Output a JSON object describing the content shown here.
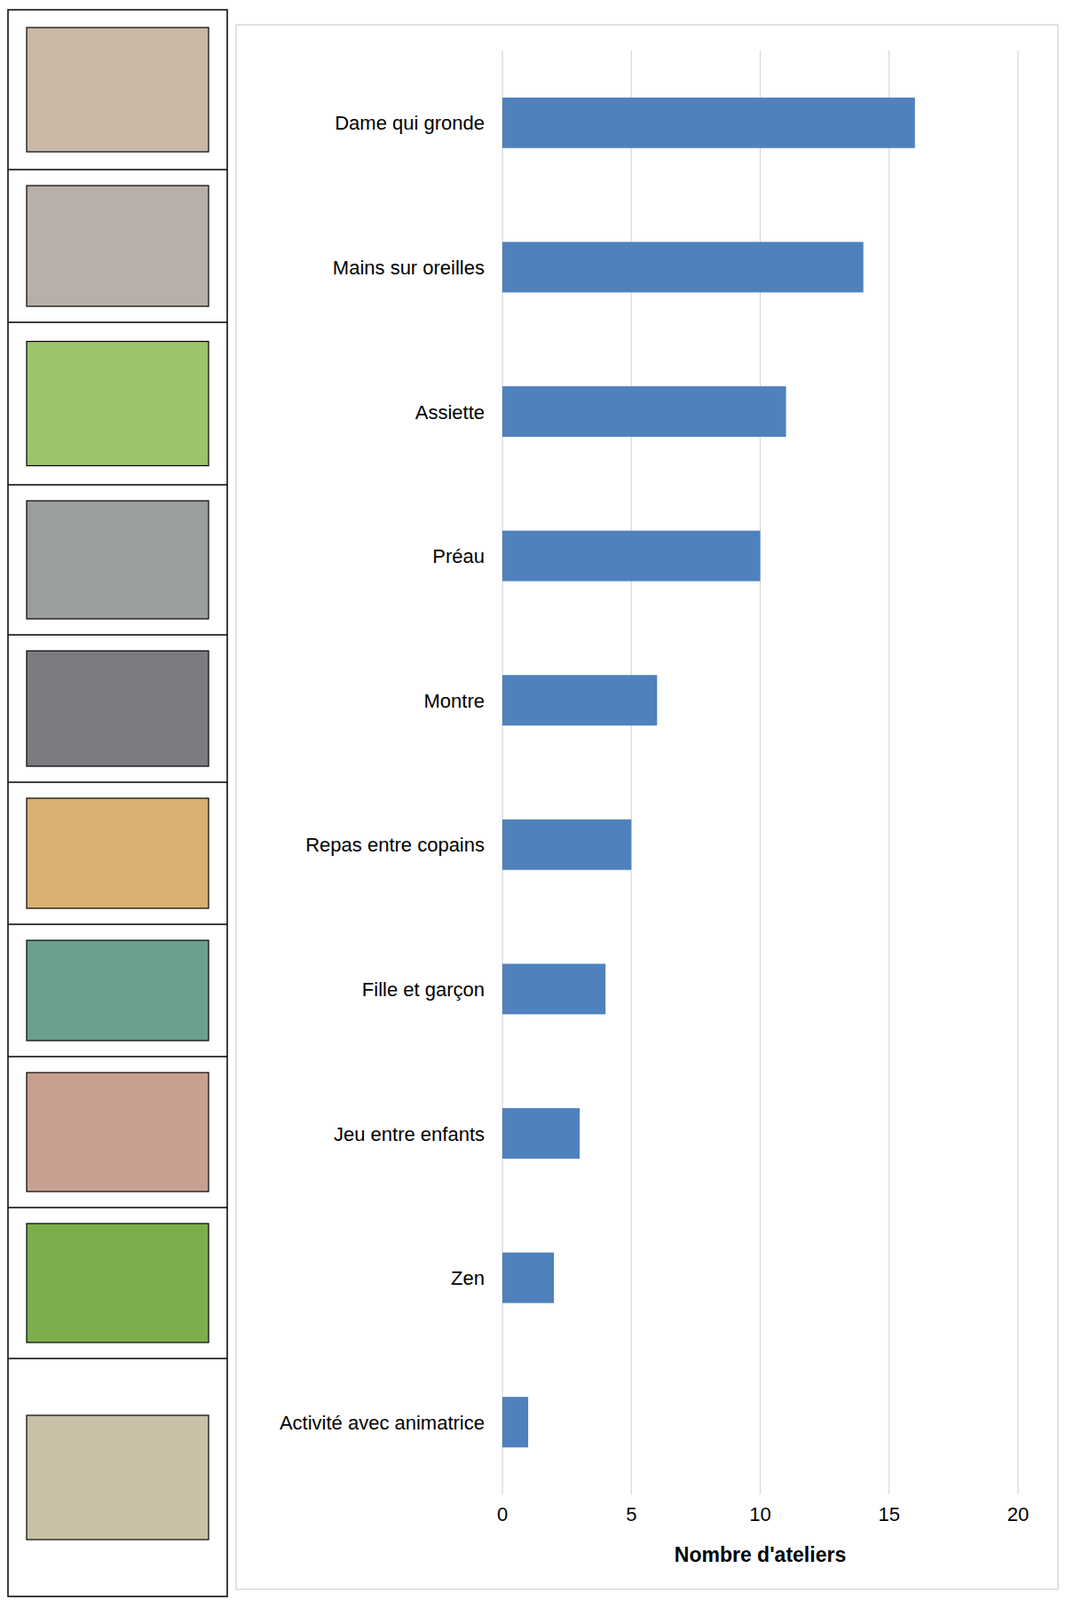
{
  "chart_data": {
    "type": "bar",
    "orientation": "horizontal",
    "categories": [
      "Dame qui gronde",
      "Mains sur oreilles",
      "Assiette",
      "Préau",
      "Montre",
      "Repas entre copains",
      "Fille et garçon",
      "Jeu entre enfants",
      "Zen",
      "Activité avec animatrice"
    ],
    "values": [
      16,
      14,
      11,
      10,
      6,
      5,
      4,
      3,
      2,
      1
    ],
    "color": "#4f81bd",
    "x_label": "Nombre d'ateliers",
    "xlim": [
      0,
      20
    ],
    "xticks": [
      0,
      5,
      10,
      15,
      20
    ],
    "grid": true
  }
}
